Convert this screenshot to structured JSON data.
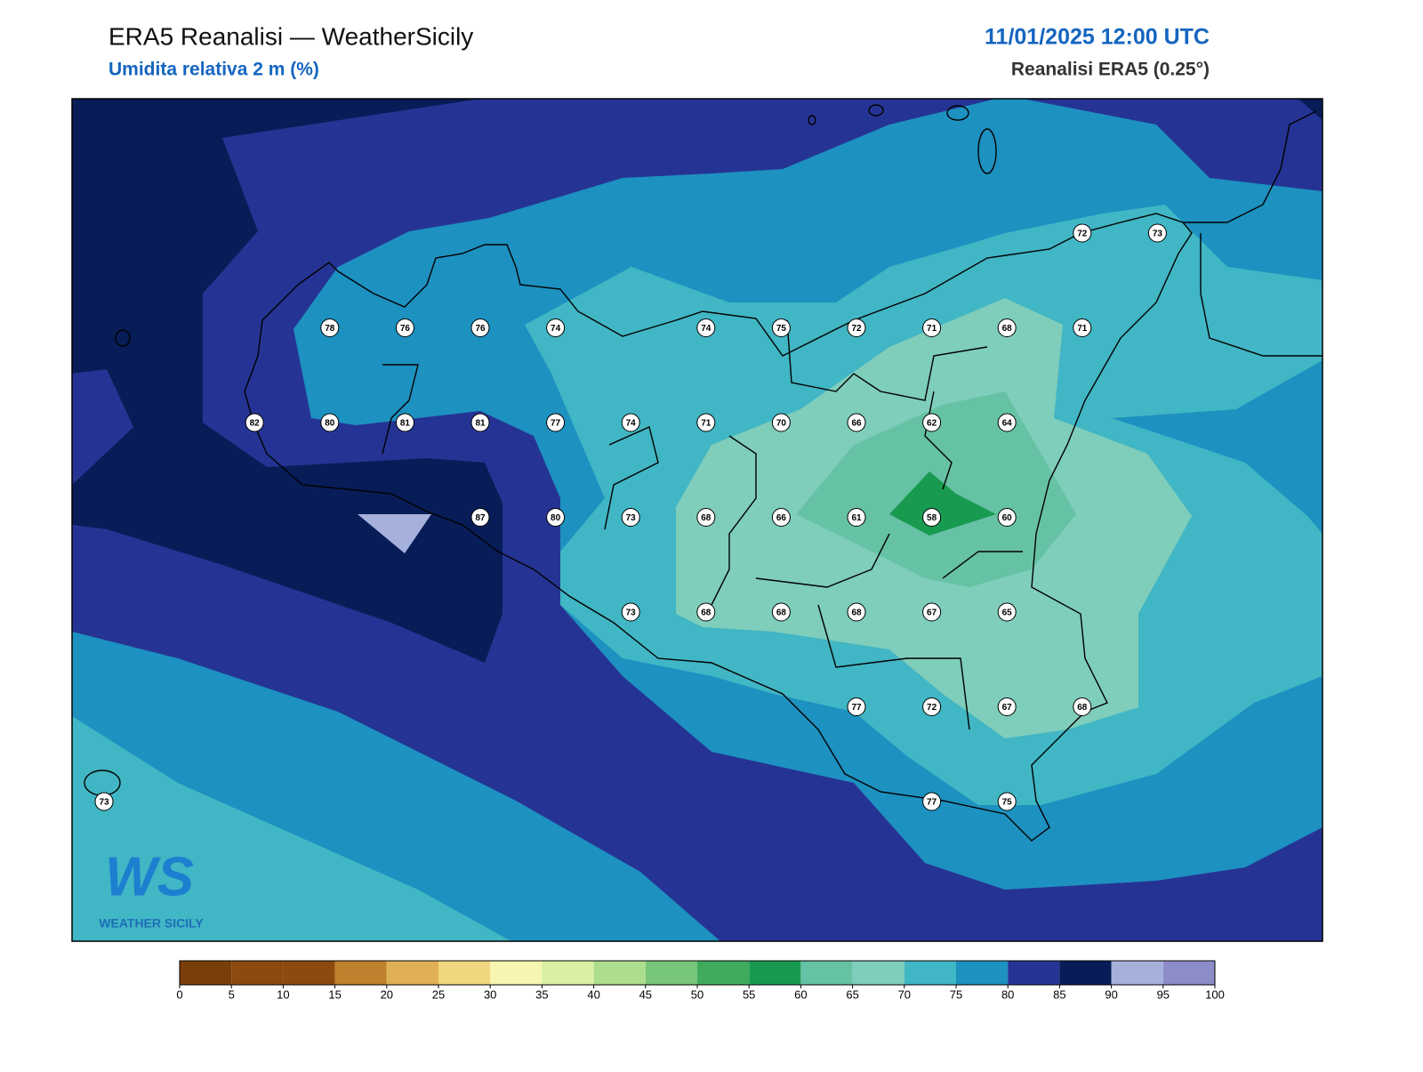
{
  "header": {
    "title": "ERA5 Reanalisi — WeatherSicily",
    "subtitle": "Umidita relativa 2 m (%)",
    "datetime": "11/01/2025 12:00 UTC",
    "source": "Reanalisi ERA5 (0.25°)"
  },
  "stations": {
    "rows": [
      [
        null,
        null,
        null,
        null,
        null,
        null,
        null,
        null,
        null,
        null,
        null,
        null,
        null,
        72,
        73
      ],
      [
        null,
        null,
        null,
        78,
        76,
        76,
        74,
        null,
        74,
        75,
        72,
        71,
        68,
        71,
        null
      ],
      [
        null,
        null,
        82,
        80,
        81,
        81,
        77,
        74,
        71,
        70,
        66,
        62,
        64,
        null,
        null
      ],
      [
        null,
        null,
        null,
        null,
        null,
        87,
        80,
        73,
        68,
        66,
        61,
        58,
        60,
        null,
        null
      ],
      [
        null,
        null,
        null,
        null,
        null,
        null,
        null,
        73,
        68,
        68,
        68,
        67,
        65,
        null,
        null
      ],
      [
        null,
        null,
        null,
        null,
        null,
        null,
        null,
        null,
        null,
        null,
        77,
        72,
        67,
        68,
        null
      ],
      [
        73,
        null,
        null,
        null,
        null,
        null,
        null,
        null,
        null,
        null,
        null,
        77,
        75,
        null,
        null
      ]
    ]
  },
  "colorbar": {
    "ticks": [
      0,
      5,
      10,
      15,
      20,
      25,
      30,
      35,
      40,
      45,
      50,
      55,
      60,
      65,
      70,
      75,
      80,
      85,
      90,
      95,
      100
    ],
    "colors": [
      "#7a3f09",
      "#8c4a0e",
      "#8c4a0e",
      "#bf812d",
      "#dfb055",
      "#f0d67e",
      "#f6f6b0",
      "#d9f0a3",
      "#addd8e",
      "#78c679",
      "#41ab5d",
      "#189a50",
      "#66c2a4",
      "#7fcdbb",
      "#41b6c4",
      "#1d91c0",
      "#253494",
      "#081d58",
      "#a6b0dc",
      "#8c8cc8"
    ]
  },
  "logo": {
    "mark": "WS",
    "name": "WEATHER SICILY"
  }
}
